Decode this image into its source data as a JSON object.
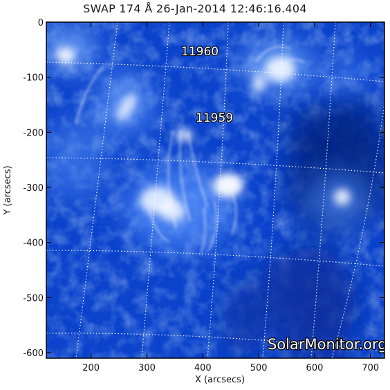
{
  "title": "SWAP 174 Å 26-Jan-2014 12:46:16.404",
  "watermark": "SolarMonitor.org",
  "colors": {
    "frame": "#000000",
    "base_blue": "#0a3fc8",
    "deep_blue": "#062a8e",
    "bright": "#ffffff",
    "grid": "#ffffff"
  },
  "axes": {
    "x": {
      "label": "X (arcsecs)",
      "ticks": [
        "200",
        "300",
        "400",
        "500",
        "600",
        "700"
      ],
      "range": [
        120,
        725
      ]
    },
    "y": {
      "label": "Y (arcsecs)",
      "ticks": [
        "0",
        "-100",
        "-200",
        "-300",
        "-400",
        "-500",
        "-600"
      ],
      "range": [
        -610,
        0
      ]
    }
  },
  "active_regions": [
    {
      "label": "11960"
    },
    {
      "label": "11959"
    }
  ]
}
